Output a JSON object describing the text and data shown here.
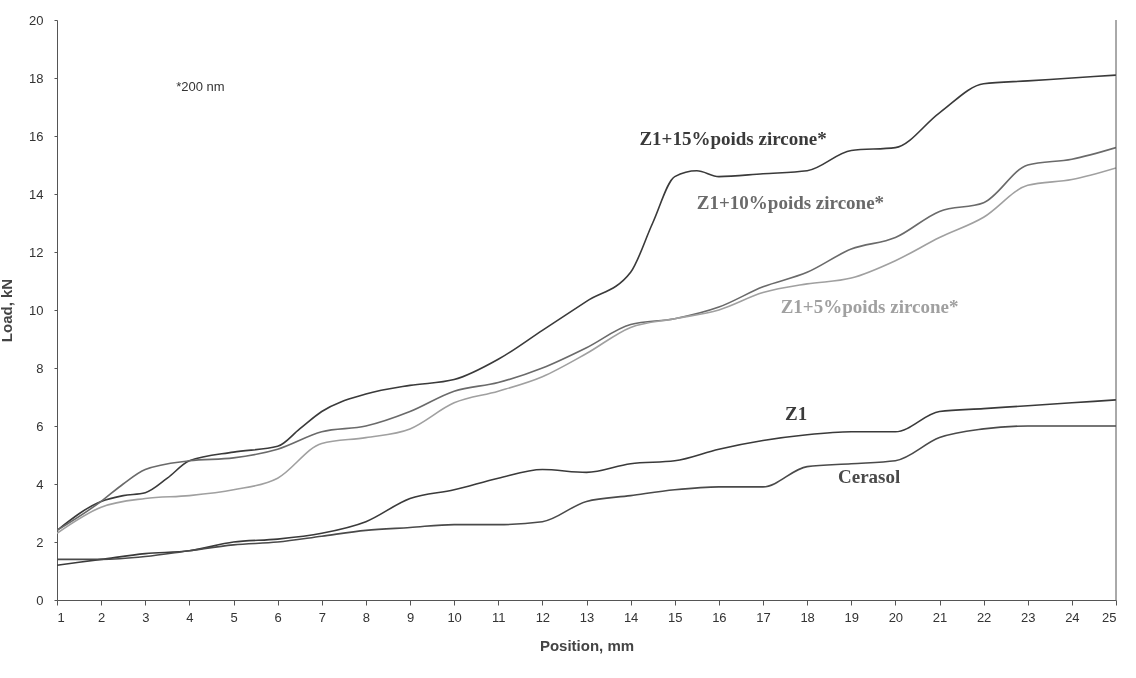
{
  "chart_data": {
    "type": "line",
    "xlabel": "Position, mm",
    "ylabel": "Load, kN",
    "annotations": [
      "*200 nm"
    ],
    "xlim": [
      1,
      25
    ],
    "ylim": [
      0,
      20
    ],
    "xticks": [
      1,
      2,
      3,
      4,
      5,
      6,
      7,
      8,
      9,
      10,
      11,
      12,
      13,
      14,
      15,
      16,
      17,
      18,
      19,
      20,
      21,
      22,
      23,
      24,
      25
    ],
    "yticks": [
      0,
      2,
      4,
      6,
      8,
      10,
      12,
      14,
      16,
      18,
      20
    ],
    "grid": false,
    "marker": "none",
    "line_style": "solid",
    "x": [
      1,
      2,
      3,
      4,
      5,
      6,
      7,
      8,
      9,
      10,
      11,
      12,
      13,
      14,
      15,
      16,
      17,
      18,
      19,
      20,
      21,
      22,
      23,
      24,
      25
    ],
    "series": [
      {
        "name": "Z1+15%poids zircone*",
        "color": "#3a3a3a",
        "x": [
          1,
          2,
          2.5,
          3,
          3.5,
          4,
          5,
          6,
          6.5,
          7,
          8,
          9,
          10,
          11,
          12,
          13,
          14,
          14.5,
          15,
          15.5,
          16,
          17,
          18,
          19,
          20,
          21,
          22,
          23,
          24,
          25
        ],
        "values": [
          2.4,
          3.4,
          3.6,
          3.7,
          4.2,
          4.8,
          5.1,
          5.3,
          5.9,
          6.5,
          7.1,
          7.4,
          7.6,
          8.3,
          9.3,
          10.3,
          11.3,
          13,
          14.6,
          14.8,
          14.6,
          14.7,
          14.8,
          15.5,
          15.6,
          16.8,
          17.8,
          17.9,
          18,
          18.1
        ]
      },
      {
        "name": "Z1+10%poids zircone*",
        "color": "#6a6a6a",
        "x": [
          1,
          2,
          2.5,
          3,
          4,
          5,
          6,
          7,
          8,
          9,
          10,
          11,
          12,
          13,
          14,
          15,
          16,
          17,
          18,
          19,
          20,
          21,
          22,
          23,
          24,
          25
        ],
        "values": [
          2.4,
          3.4,
          4.0,
          4.5,
          4.8,
          4.9,
          5.2,
          5.8,
          6.0,
          6.5,
          7.2,
          7.5,
          8.0,
          8.7,
          9.5,
          9.7,
          10.1,
          10.8,
          11.3,
          12.1,
          12.5,
          13.4,
          13.7,
          15.0,
          15.2,
          15.6
        ]
      },
      {
        "name": "Z1+5%poids zircone*",
        "color": "#a0a0a0",
        "values": [
          2.3,
          3.2,
          3.5,
          3.6,
          3.8,
          4.2,
          5.4,
          5.6,
          5.9,
          6.8,
          7.2,
          7.7,
          8.5,
          9.4,
          9.7,
          10.0,
          10.6,
          10.9,
          11.1,
          11.7,
          12.5,
          13.2,
          14.3,
          14.5,
          14.9
        ]
      },
      {
        "name": "Z1",
        "color": "#3a3a3a",
        "values": [
          1.2,
          1.4,
          1.6,
          1.7,
          2.0,
          2.1,
          2.3,
          2.7,
          3.5,
          3.8,
          4.2,
          4.5,
          4.4,
          4.7,
          4.8,
          5.2,
          5.5,
          5.7,
          5.8,
          5.8,
          6.5,
          6.6,
          6.7,
          6.8,
          6.9
        ]
      },
      {
        "name": "Cerasol",
        "color": "#4a4a4a",
        "values": [
          1.4,
          1.4,
          1.5,
          1.7,
          1.9,
          2.0,
          2.2,
          2.4,
          2.5,
          2.6,
          2.6,
          2.7,
          3.4,
          3.6,
          3.8,
          3.9,
          3.9,
          4.6,
          4.7,
          4.8,
          5.6,
          5.9,
          6.0,
          6.0,
          6.0
        ]
      }
    ]
  }
}
